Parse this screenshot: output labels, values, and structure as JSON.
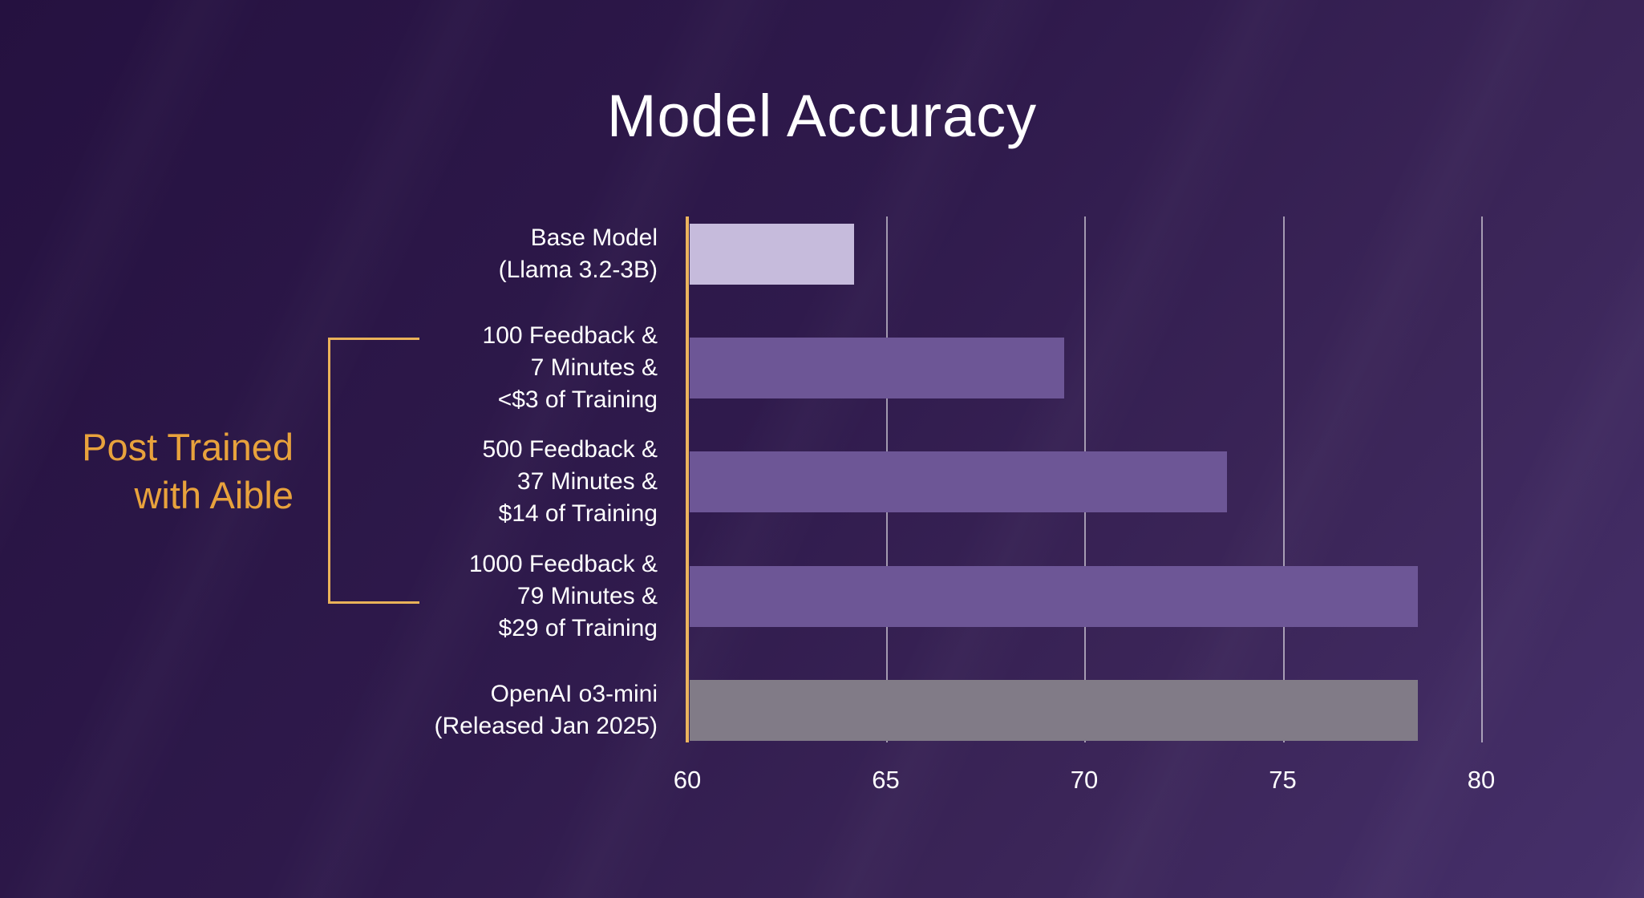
{
  "chart_data": {
    "type": "bar",
    "orientation": "horizontal",
    "title": "Model Accuracy",
    "categories": [
      [
        "Base Model",
        "(Llama 3.2-3B)"
      ],
      [
        "100 Feedback &",
        "7 Minutes &",
        "<$3 of Training"
      ],
      [
        "500 Feedback &",
        "37 Minutes &",
        "$14 of Training"
      ],
      [
        "1000 Feedback &",
        "79 Minutes &",
        "$29 of Training"
      ],
      [
        "OpenAI o3-mini",
        "(Released Jan 2025)"
      ]
    ],
    "values": [
      64.2,
      69.5,
      73.6,
      78.4,
      78.4
    ],
    "xlim": [
      60,
      82
    ],
    "xticks": [
      60,
      65,
      70,
      75,
      80
    ],
    "grid": true,
    "legend": "none",
    "bar_colors": [
      "#c6bbdc",
      "#6d5696",
      "#6d5696",
      "#6d5696",
      "#817b87"
    ],
    "annotation": {
      "lines": [
        "Post Trained",
        "with Aible"
      ],
      "applies_to_bars": [
        1,
        2,
        3
      ]
    }
  },
  "colors": {
    "background_top_left": "#251140",
    "background_bottom_right": "#46306b",
    "title_text": "#ffffff",
    "label_text": "#ffffff",
    "accent_orange_text": "#e8a23c",
    "accent_orange_line": "#ecb45e",
    "bar_base_model": "#c6bbdc",
    "bar_aible": "#6d5696",
    "bar_competitor": "#817b87",
    "gridline": "rgba(255,255,255,0.55)"
  }
}
